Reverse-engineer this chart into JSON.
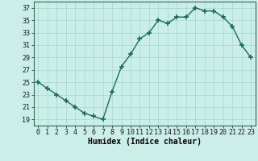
{
  "x": [
    0,
    1,
    2,
    3,
    4,
    5,
    6,
    7,
    8,
    9,
    10,
    11,
    12,
    13,
    14,
    15,
    16,
    17,
    18,
    19,
    20,
    21,
    22,
    23
  ],
  "y": [
    25,
    24,
    23,
    22,
    21,
    20,
    19.5,
    19,
    23.5,
    27.5,
    29.5,
    32,
    33,
    35,
    34.5,
    35.5,
    35.5,
    37,
    36.5,
    36.5,
    35.5,
    34,
    31,
    29
  ],
  "line_color": "#1a6b5a",
  "marker_color": "#1a6b5a",
  "bg_color": "#cceee8",
  "grid_color": "#a0d8d0",
  "xlabel": "Humidex (Indice chaleur)",
  "ylim": [
    18,
    38
  ],
  "xlim": [
    -0.5,
    23.5
  ],
  "yticks": [
    19,
    21,
    23,
    25,
    27,
    29,
    31,
    33,
    35,
    37
  ],
  "xticks": [
    0,
    1,
    2,
    3,
    4,
    5,
    6,
    7,
    8,
    9,
    10,
    11,
    12,
    13,
    14,
    15,
    16,
    17,
    18,
    19,
    20,
    21,
    22,
    23
  ],
  "xlabel_fontsize": 7,
  "tick_fontsize": 6,
  "marker_size": 4,
  "line_width": 1.0
}
